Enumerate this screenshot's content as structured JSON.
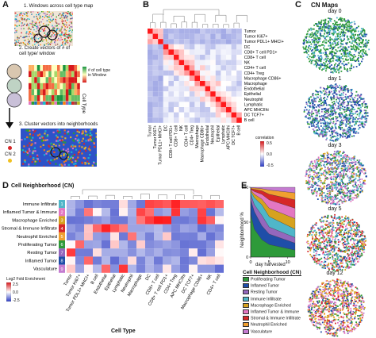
{
  "panels": {
    "a": "A",
    "b": "B",
    "c": "C",
    "d": "D",
    "e": "E"
  },
  "panel_a": {
    "step1": "1. Windows across cell type map",
    "step2": "2. Create vectors of # of\ncell type/ window",
    "step3": "3. Cluster vectors into neighborhoods",
    "legend_text": "# of cell type\nin Window",
    "cell_type_label": "Cell Type",
    "cn1": "CN 1",
    "cn2": "CN 2"
  },
  "panel_b": {
    "row_labels": [
      "Tumor",
      "Tumor Ki67+",
      "Tumor PDL1+ MHCI+",
      "DC",
      "CD8+ T cell PD1+",
      "CD8+ T cell",
      "NK",
      "CD4+ T cell",
      "CD4+ Treg",
      "Macrophage CD86+",
      "Macrophage",
      "Endothelial",
      "Epithelial",
      "Neutrophil",
      "Lymphatic",
      "APC MHCIIhi",
      "DC TCF7+",
      "B cell"
    ],
    "col_labels": [
      "Tumor",
      "Tumor Ki67+",
      "Tumor PDL1+ MHCI+",
      "DC",
      "CD8+ T cell PD1+",
      "CD8+ T cell",
      "NK",
      "CD4+ T cell",
      "CD4+ Treg",
      "Macrophage",
      "Macrophage CD86+",
      "Endothelial",
      "Neutrophil",
      "Epithelial",
      "Lymphatic",
      "APC MHCIIhi",
      "DC TCF7+",
      "B cell"
    ],
    "colorbar_title": "correlation",
    "colorbar_ticks": [
      "0.5",
      "0.0",
      "-0.5"
    ]
  },
  "panel_c": {
    "title": "CN Maps",
    "days": [
      "day 0",
      "day 1",
      "day 3",
      "day 5",
      "day 12"
    ]
  },
  "panel_d": {
    "title": "Cell Neighborhood (CN)",
    "rows": [
      {
        "label": "Immune Infiltrate",
        "num": "1",
        "color": "#4fb6c9"
      },
      {
        "label": "Inflamed Tumor & Immune",
        "num": "2",
        "color": "#e377c2"
      },
      {
        "label": "Macrophage Enriched",
        "num": "3",
        "color": "#d6a21f"
      },
      {
        "label": "Stromal & Immune Infiltrate",
        "num": "4",
        "color": "#d62728"
      },
      {
        "label": "Neutrophil Enriched",
        "num": "5",
        "color": "#f0a030"
      },
      {
        "label": "Proliferating Tumor",
        "num": "6",
        "color": "#2e9a3a"
      },
      {
        "label": "Resting Tumor",
        "num": "7",
        "color": "#9467bd"
      },
      {
        "label": "Inflamed Tumor",
        "num": "8",
        "color": "#1f4ea8"
      },
      {
        "label": "Vasculature",
        "num": "9",
        "color": "#c47bd0"
      }
    ],
    "col_labels": [
      "Tumor",
      "Tumor Ki67+",
      "Tumor PDL1+ MHCI+",
      "B cell",
      "Endothelial",
      "Epithelial",
      "Lymphatic",
      "Neutrophil",
      "Macrophage",
      "DC",
      "CD8+ T cell",
      "CD8+ T cell PD1+",
      "CD4+ Treg",
      "APC MHCIIhi",
      "DC TCF7+",
      "Macrophage CD86+",
      "NK",
      "CD4+ T cell"
    ],
    "xlabel": "Cell Type",
    "colorbar_title": "Log2 Fold Enrichment",
    "colorbar_ticks": [
      "2.5",
      "0.0",
      "-2.5"
    ]
  },
  "panel_e": {
    "ylabel": "Neighborhood %",
    "xlabel": "day harvested",
    "x_ticks": [
      "0",
      "5",
      "10"
    ],
    "y_ticks": [
      "0",
      "50",
      "100"
    ],
    "legend_title": "Cell Neighborhood (CN)",
    "legend": [
      {
        "label": "Proliferating Tumor",
        "color": "#2e9a3a"
      },
      {
        "label": "Inflamed Tumor",
        "color": "#1f4ea8"
      },
      {
        "label": "Resting Tumor",
        "color": "#9467bd"
      },
      {
        "label": "Immune Infiltrate",
        "color": "#4fb6c9"
      },
      {
        "label": "Macrophage Enriched",
        "color": "#d6a21f"
      },
      {
        "label": "Inflamed Tumor & Immune",
        "color": "#e377c2"
      },
      {
        "label": "Stromal & Immune Infiltrate",
        "color": "#d62728"
      },
      {
        "label": "Neutrophil Enriched",
        "color": "#f0a030"
      },
      {
        "label": "Vasculature",
        "color": "#c47bd0"
      }
    ]
  }
}
